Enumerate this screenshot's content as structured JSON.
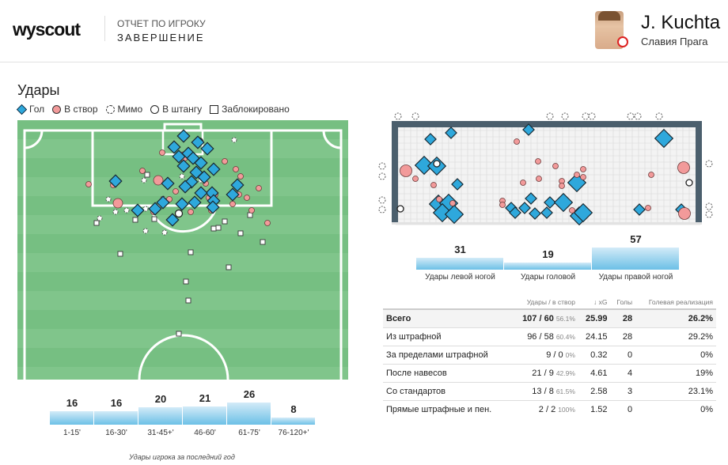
{
  "header": {
    "logo": "wyscout",
    "report_type": "ОТЧЕТ ПО ИГРОКУ",
    "section": "ЗАВЕРШЕНИЕ",
    "player_name": "J. Kuchta",
    "team": "Славия Прага"
  },
  "shots": {
    "title": "Удары",
    "legend": [
      {
        "label": "Гол",
        "icon": "diamond-icon",
        "color": "#2ea8dc"
      },
      {
        "label": "В створ",
        "icon": "circle-icon",
        "color": "#f29a9a"
      },
      {
        "label": "Мимо",
        "icon": "dashed-circle-icon",
        "color": "#ffffff"
      },
      {
        "label": "В штангу",
        "icon": "ring-icon",
        "color": "#ffffff"
      },
      {
        "label": "Заблокировано",
        "icon": "square-icon",
        "color": "#ffffff"
      }
    ]
  },
  "time_bars": {
    "caption": "Удары игрока за последний год",
    "items": [
      {
        "label": "1-15'",
        "value": 16
      },
      {
        "label": "16-30'",
        "value": 16
      },
      {
        "label": "31-45+'",
        "value": 20
      },
      {
        "label": "46-60'",
        "value": 21
      },
      {
        "label": "61-75'",
        "value": 26
      },
      {
        "label": "76-120+'",
        "value": 8
      }
    ]
  },
  "foot_bars": {
    "items": [
      {
        "label": "Удары левой ногой",
        "value": 31
      },
      {
        "label": "Удары головой",
        "value": 19
      },
      {
        "label": "Удары правой ногой",
        "value": 57
      }
    ]
  },
  "table": {
    "headers": [
      "",
      "Удары / в створ",
      "↓ xG",
      "Голы",
      "Голевая реализация"
    ],
    "rows": [
      {
        "name": "Всего",
        "shots": "107 / 60",
        "pct": "56.1%",
        "xg": "25.99",
        "goals": "28",
        "conv": "26.2%"
      },
      {
        "name": "Из штрафной",
        "shots": "96 / 58",
        "pct": "60.4%",
        "xg": "24.15",
        "goals": "28",
        "conv": "29.2%"
      },
      {
        "name": "За пределами штрафной",
        "shots": "9 / 0",
        "pct": "0%",
        "xg": "0.32",
        "goals": "0",
        "conv": "0%"
      },
      {
        "name": "После навесов",
        "shots": "21 / 9",
        "pct": "42.9%",
        "xg": "4.61",
        "goals": "4",
        "conv": "19%"
      },
      {
        "name": "Со стандартов",
        "shots": "13 / 8",
        "pct": "61.5%",
        "xg": "2.58",
        "goals": "3",
        "conv": "23.1%"
      },
      {
        "name": "Прямые штрафные и пен.",
        "shots": "2 / 2",
        "pct": "100%",
        "xg": "1.52",
        "goals": "0",
        "conv": "0%"
      }
    ]
  },
  "colors": {
    "goal": "#2ea8dc",
    "on_target": "#f29a9a",
    "pitch": "#7fc48a",
    "frame": "#4b5f6d"
  }
}
